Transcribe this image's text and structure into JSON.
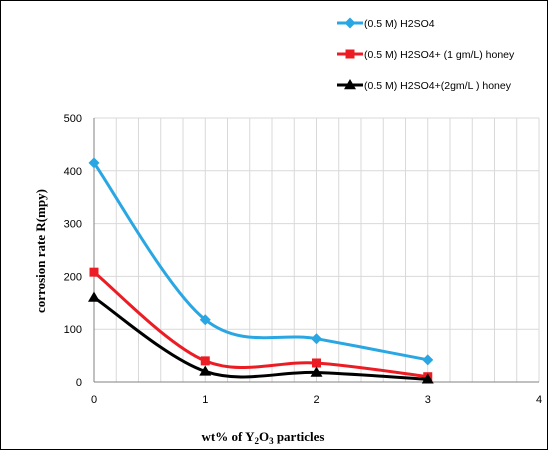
{
  "chart_data": {
    "type": "line",
    "title": "",
    "xlabel_parts": [
      "wt% of Y",
      "2",
      "O",
      "3",
      " particles"
    ],
    "ylabel": "corrosion rate  R(mpy)",
    "x": [
      0,
      1,
      2,
      3
    ],
    "xlim": [
      0,
      4
    ],
    "ylim": [
      0,
      500
    ],
    "xticks": [
      0,
      1,
      2,
      3,
      4
    ],
    "yticks": [
      0,
      100,
      200,
      300,
      400,
      500
    ],
    "grid": true,
    "minor_x_grid": 5,
    "legend_position": "top-right",
    "series": [
      {
        "name": "(0.5 M) H2SO4",
        "values": [
          415,
          118,
          82,
          42
        ],
        "color": "#2aa7e3",
        "marker": "diamond"
      },
      {
        "name": "(0.5 M) H2SO4+ (1 gm/L) honey",
        "values": [
          208,
          40,
          36,
          10
        ],
        "color": "#ec1c24",
        "marker": "square"
      },
      {
        "name": "(0.5 M) H2SO4+(2gm/L ) honey",
        "values": [
          160,
          20,
          18,
          5
        ],
        "color": "#000000",
        "marker": "triangle"
      }
    ]
  }
}
